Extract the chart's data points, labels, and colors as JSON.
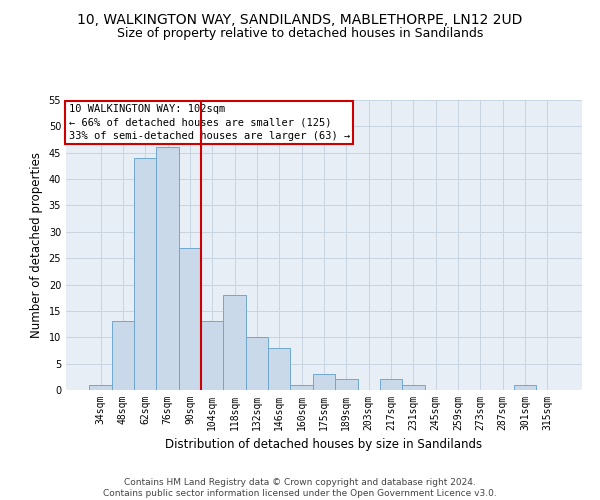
{
  "title1": "10, WALKINGTON WAY, SANDILANDS, MABLETHORPE, LN12 2UD",
  "title2": "Size of property relative to detached houses in Sandilands",
  "xlabel": "Distribution of detached houses by size in Sandilands",
  "ylabel": "Number of detached properties",
  "footer1": "Contains HM Land Registry data © Crown copyright and database right 2024.",
  "footer2": "Contains public sector information licensed under the Open Government Licence v3.0.",
  "bar_labels": [
    "34sqm",
    "48sqm",
    "62sqm",
    "76sqm",
    "90sqm",
    "104sqm",
    "118sqm",
    "132sqm",
    "146sqm",
    "160sqm",
    "175sqm",
    "189sqm",
    "203sqm",
    "217sqm",
    "231sqm",
    "245sqm",
    "259sqm",
    "273sqm",
    "287sqm",
    "301sqm",
    "315sqm"
  ],
  "bar_values": [
    1,
    13,
    44,
    46,
    27,
    13,
    18,
    10,
    8,
    1,
    3,
    2,
    0,
    2,
    1,
    0,
    0,
    0,
    0,
    1,
    0
  ],
  "bar_color": "#c9d9ea",
  "bar_edge_color": "#6fa8cc",
  "property_label": "10 WALKINGTON WAY: 102sqm",
  "annotation_line1": "← 66% of detached houses are smaller (125)",
  "annotation_line2": "33% of semi-detached houses are larger (63) →",
  "vline_x_index": 4.5,
  "vline_color": "#cc0000",
  "annotation_box_color": "#cc0000",
  "ylim": [
    0,
    55
  ],
  "yticks": [
    0,
    5,
    10,
    15,
    20,
    25,
    30,
    35,
    40,
    45,
    50,
    55
  ],
  "grid_color": "#c8d4e0",
  "bg_color": "#e8eef5",
  "title1_fontsize": 10,
  "title2_fontsize": 9,
  "xlabel_fontsize": 8.5,
  "ylabel_fontsize": 8.5,
  "tick_fontsize": 7,
  "annot_fontsize": 7.5,
  "footer_fontsize": 6.5
}
